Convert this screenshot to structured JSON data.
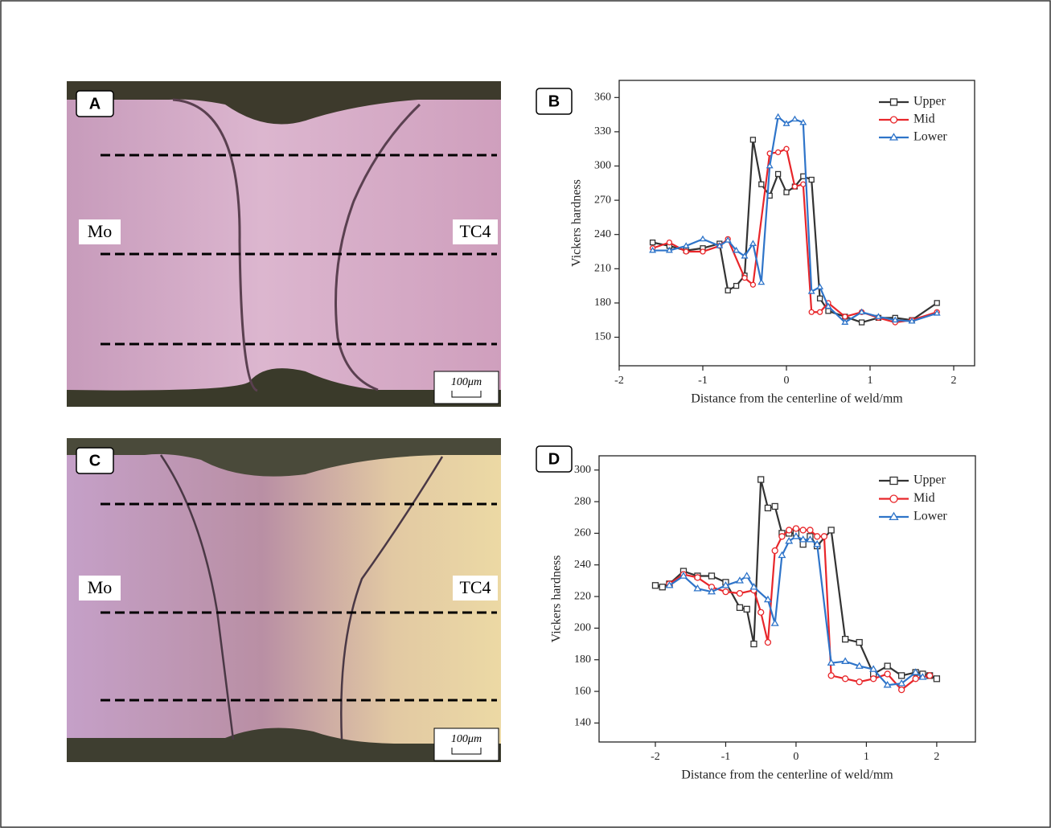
{
  "micrographs": [
    {
      "panel": "A",
      "left_label": "Mo",
      "right_label": "TC4",
      "scale_bar": "100μm"
    },
    {
      "panel": "C",
      "left_label": "Mo",
      "right_label": "TC4",
      "scale_bar": "100μm"
    }
  ],
  "chart_data": [
    {
      "type": "line",
      "panel": "B",
      "x_label": "Distance from the centerline of weld/mm",
      "y_label": "Vickers hardness",
      "xlim": [
        -2,
        2.25
      ],
      "ylim": [
        125,
        375
      ],
      "xticks": [
        -2,
        -1,
        0,
        1,
        2
      ],
      "yticks": [
        150,
        180,
        210,
        240,
        270,
        300,
        330,
        360
      ],
      "legend": "top-right",
      "series": [
        {
          "name": "Upper",
          "color": "#333333",
          "marker": "square",
          "x": [
            -1.6,
            -1.4,
            -1.2,
            -1.0,
            -0.8,
            -0.7,
            -0.6,
            -0.5,
            -0.4,
            -0.3,
            -0.2,
            -0.1,
            0,
            0.1,
            0.2,
            0.3,
            0.4,
            0.5,
            0.7,
            0.9,
            1.1,
            1.3,
            1.5,
            1.8
          ],
          "values": [
            233,
            230,
            226,
            228,
            232,
            191,
            195,
            204,
            323,
            284,
            274,
            293,
            277,
            282,
            291,
            288,
            184,
            173,
            168,
            163,
            167,
            167,
            165,
            180
          ]
        },
        {
          "name": "Mid",
          "color": "#e8262a",
          "marker": "circle",
          "x": [
            -1.6,
            -1.4,
            -1.2,
            -1.0,
            -0.8,
            -0.7,
            -0.5,
            -0.4,
            -0.2,
            -0.1,
            0,
            0.1,
            0.2,
            0.3,
            0.4,
            0.5,
            0.7,
            0.9,
            1.1,
            1.3,
            1.5,
            1.8
          ],
          "values": [
            228,
            233,
            225,
            225,
            230,
            236,
            202,
            196,
            311,
            312,
            315,
            282,
            284,
            172,
            172,
            180,
            168,
            172,
            167,
            163,
            165,
            172
          ]
        },
        {
          "name": "Lower",
          "color": "#2e74c9",
          "marker": "triangle",
          "x": [
            -1.6,
            -1.4,
            -1.2,
            -1.0,
            -0.8,
            -0.7,
            -0.6,
            -0.5,
            -0.4,
            -0.3,
            -0.2,
            -0.1,
            0,
            0.1,
            0.2,
            0.3,
            0.4,
            0.5,
            0.7,
            0.9,
            1.1,
            1.3,
            1.5,
            1.8
          ],
          "values": [
            226,
            226,
            230,
            236,
            230,
            235,
            226,
            221,
            232,
            198,
            300,
            343,
            337,
            341,
            338,
            190,
            194,
            177,
            163,
            172,
            168,
            165,
            164,
            171
          ]
        }
      ]
    },
    {
      "type": "line",
      "panel": "D",
      "x_label": "Distance from the centerline of weld/mm",
      "y_label": "Vickers hardness",
      "xlim": [
        -2.8,
        2.55
      ],
      "ylim": [
        128,
        309
      ],
      "xticks": [
        -2,
        -1,
        0,
        1,
        2
      ],
      "yticks": [
        140,
        160,
        180,
        200,
        220,
        240,
        260,
        280,
        300
      ],
      "legend": "top-right",
      "series": [
        {
          "name": "Upper",
          "color": "#333333",
          "marker": "square",
          "x": [
            -2,
            -1.9,
            -1.8,
            -1.6,
            -1.4,
            -1.2,
            -1.0,
            -0.8,
            -0.7,
            -0.6,
            -0.5,
            -0.4,
            -0.3,
            -0.2,
            -0.1,
            0,
            0.1,
            0.2,
            0.3,
            0.5,
            0.7,
            0.9,
            1.1,
            1.3,
            1.5,
            1.7,
            1.8,
            1.9,
            2.0
          ],
          "values": [
            227,
            226,
            228,
            236,
            233,
            233,
            229,
            213,
            212,
            190,
            294,
            276,
            277,
            260,
            260,
            260,
            253,
            258,
            252,
            262,
            193,
            191,
            171,
            176,
            170,
            172,
            171,
            170,
            168
          ]
        },
        {
          "name": "Mid",
          "color": "#e8262a",
          "marker": "circle",
          "x": [
            -1.8,
            -1.6,
            -1.4,
            -1.2,
            -1.0,
            -0.8,
            -0.6,
            -0.5,
            -0.4,
            -0.3,
            -0.2,
            -0.1,
            0,
            0.1,
            0.2,
            0.3,
            0.4,
            0.5,
            0.7,
            0.9,
            1.1,
            1.3,
            1.5,
            1.7,
            1.9
          ],
          "values": [
            228,
            234,
            232,
            226,
            223,
            222,
            224,
            210,
            191,
            249,
            258,
            262,
            263,
            262,
            262,
            258,
            258,
            170,
            168,
            166,
            168,
            171,
            161,
            168,
            170
          ]
        },
        {
          "name": "Lower",
          "color": "#2e74c9",
          "marker": "triangle",
          "x": [
            -1.8,
            -1.6,
            -1.4,
            -1.2,
            -1.0,
            -0.8,
            -0.7,
            -0.6,
            -0.4,
            -0.3,
            -0.2,
            -0.1,
            0,
            0.1,
            0.2,
            0.3,
            0.5,
            0.7,
            0.9,
            1.1,
            1.3,
            1.5,
            1.7,
            1.8
          ],
          "values": [
            227,
            233,
            225,
            223,
            227,
            230,
            233,
            226,
            218,
            203,
            246,
            255,
            258,
            256,
            256,
            253,
            178,
            179,
            176,
            174,
            164,
            165,
            172,
            169
          ]
        }
      ]
    }
  ]
}
